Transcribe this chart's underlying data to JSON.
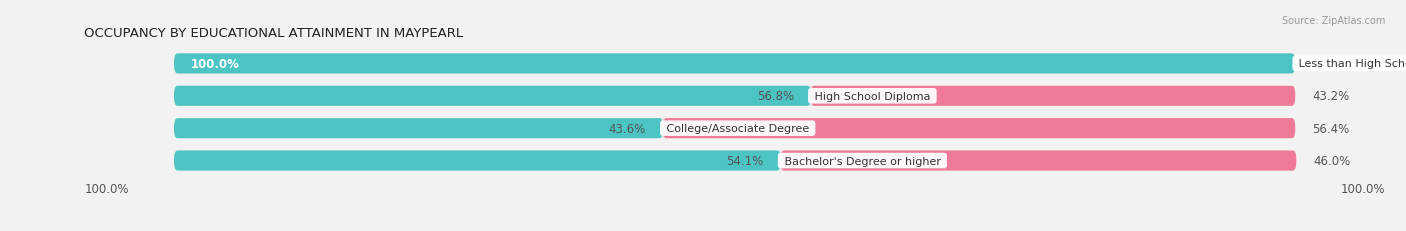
{
  "title": "OCCUPANCY BY EDUCATIONAL ATTAINMENT IN MAYPEARL",
  "source": "Source: ZipAtlas.com",
  "categories": [
    "Less than High School",
    "High School Diploma",
    "College/Associate Degree",
    "Bachelor's Degree or higher"
  ],
  "owner_pct": [
    100.0,
    56.8,
    43.6,
    54.1
  ],
  "renter_pct": [
    0.0,
    43.2,
    56.4,
    46.0
  ],
  "owner_color": "#4CC4C4",
  "renter_color": "#F07898",
  "bg_color": "#f2f2f2",
  "bar_bg_color": "#e2e2e2",
  "row_bg_even": "#e8e8e8",
  "row_bg_odd": "#f8f8f8",
  "title_fontsize": 9.5,
  "label_fontsize": 8.5,
  "cat_fontsize": 8.0,
  "bar_height": 0.62,
  "axis_label_left": "100.0%",
  "axis_label_right": "100.0%"
}
